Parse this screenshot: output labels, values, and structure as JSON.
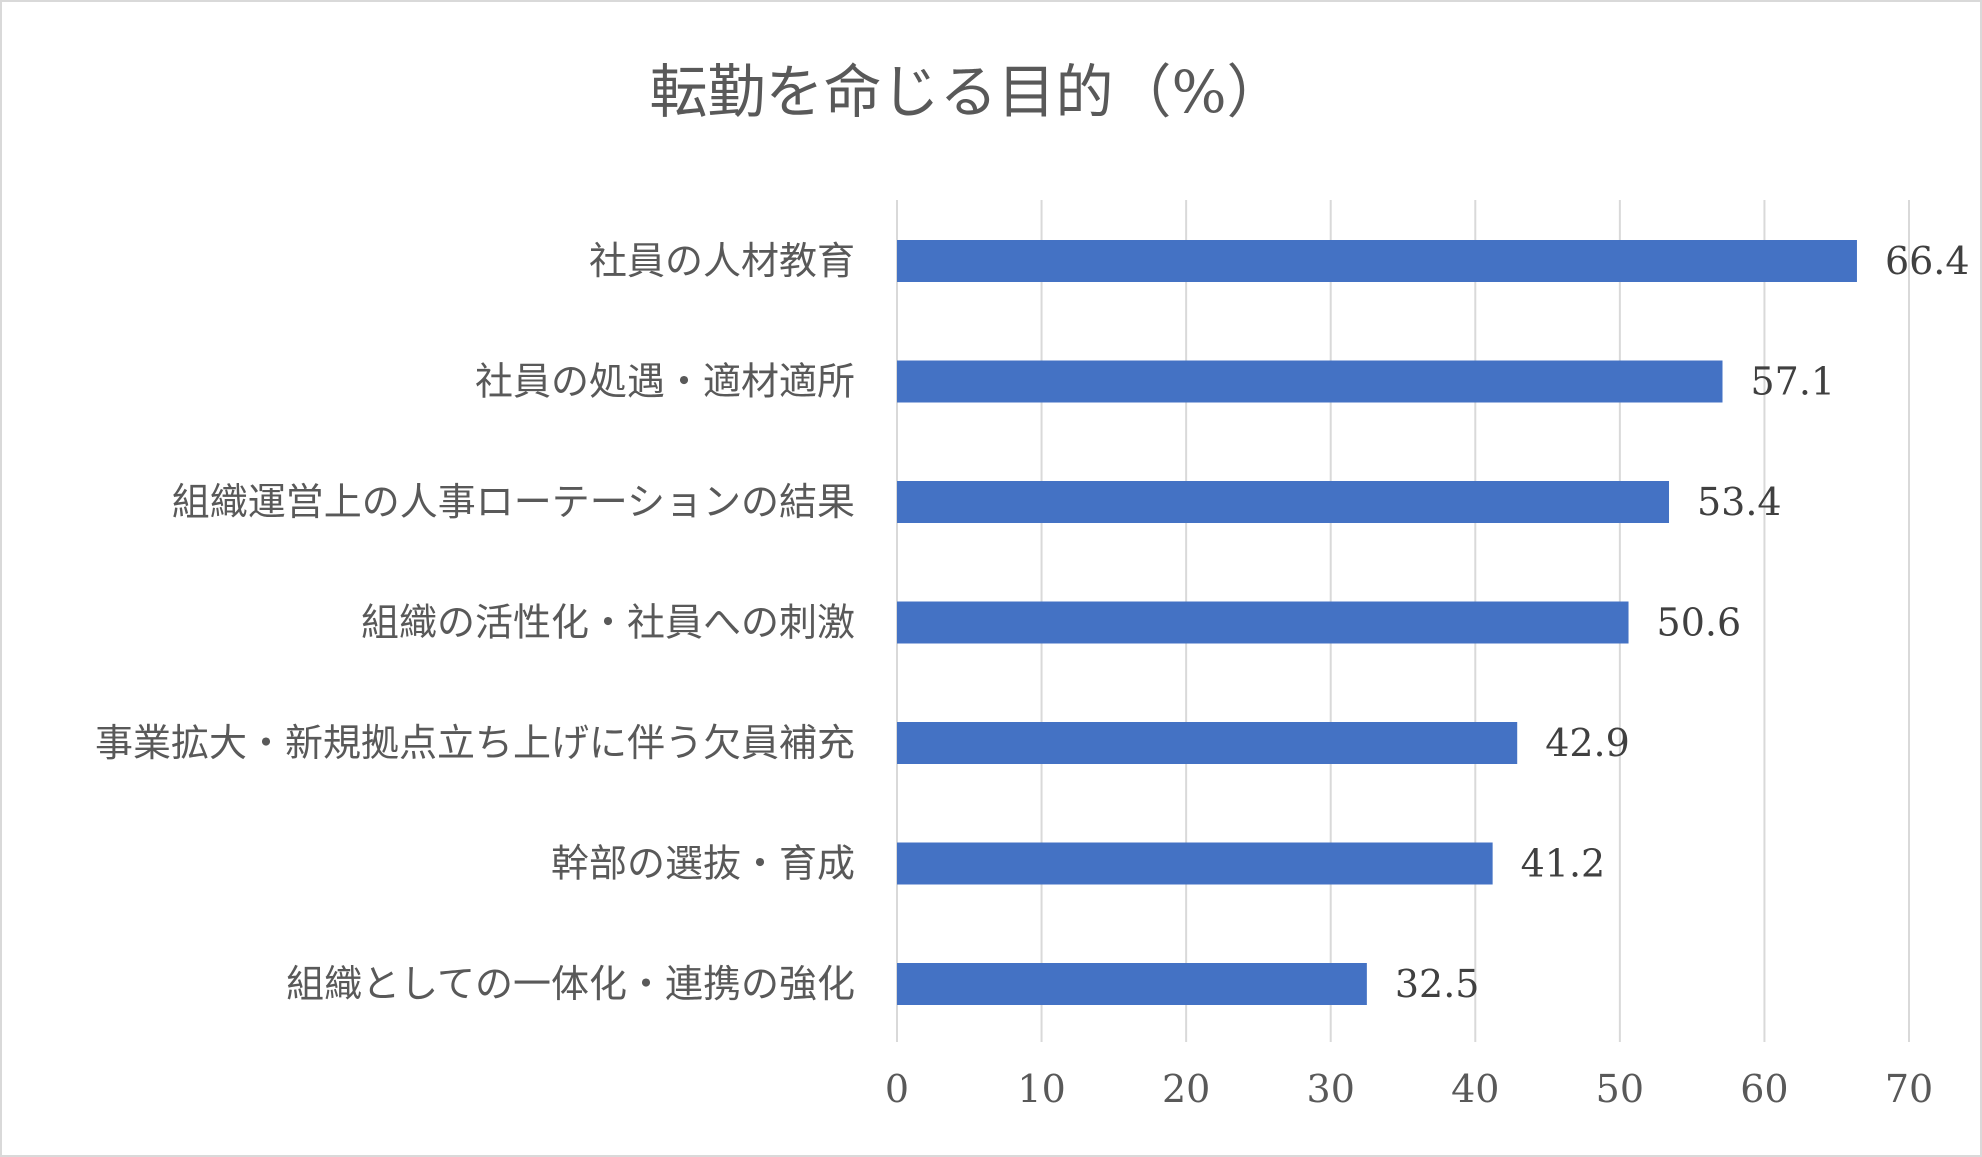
{
  "chart_data": {
    "type": "bar",
    "orientation": "horizontal",
    "title": "転勤を命じる目的（%）",
    "categories": [
      "社員の人材教育",
      "社員の処遇・適材適所",
      "組織運営上の人事ローテーションの結果",
      "組織の活性化・社員への刺激",
      "事業拡大・新規拠点立ち上げに伴う欠員補充",
      "幹部の選抜・育成",
      "組織としての一体化・連携の強化"
    ],
    "values": [
      66.4,
      57.1,
      53.4,
      50.6,
      42.9,
      41.2,
      32.5
    ],
    "value_labels": [
      "66.4",
      "57.1",
      "53.4",
      "50.6",
      "42.9",
      "41.2",
      "32.5"
    ],
    "xlim": [
      0,
      70
    ],
    "x_ticks": [
      "0",
      "10",
      "20",
      "30",
      "40",
      "50",
      "60",
      "70"
    ],
    "grid": "vertical",
    "legend": "none",
    "bar_color": "#4472c4"
  }
}
